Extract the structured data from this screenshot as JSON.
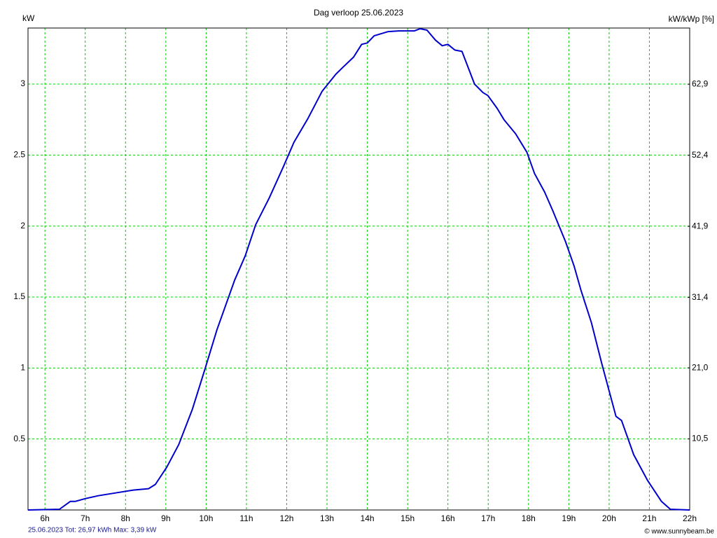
{
  "chart_data": {
    "type": "line",
    "title": "Dag  verloop 25.06.2023",
    "ylabel": "kW",
    "y2label": "kW/kWp [%]",
    "annotations": [
      "25.06.2023 Tot: 26,97 kWh Max: 3,39 kW",
      "© www.sunnybeam.be"
    ],
    "x": [
      5.58,
      6.36,
      6.63,
      6.75,
      7.0,
      7.32,
      7.75,
      8.19,
      8.57,
      8.74,
      9.02,
      9.32,
      9.66,
      9.98,
      10.27,
      10.71,
      10.97,
      11.23,
      11.57,
      11.92,
      12.18,
      12.53,
      12.88,
      13.22,
      13.4,
      13.66,
      13.86,
      14.0,
      14.17,
      14.52,
      14.78,
      15.17,
      15.31,
      15.48,
      15.69,
      15.86,
      16.0,
      16.17,
      16.35,
      16.66,
      16.87,
      16.99,
      17.22,
      17.39,
      17.68,
      17.96,
      18.15,
      18.4,
      18.6,
      18.92,
      19.13,
      19.3,
      19.56,
      19.82,
      20.17,
      20.31,
      20.61,
      20.95,
      21.3,
      21.52,
      22.0
    ],
    "series": [
      {
        "color": "#0000cc",
        "values": [
          0,
          0.005,
          0.06,
          0.06,
          0.08,
          0.1,
          0.12,
          0.14,
          0.15,
          0.18,
          0.3,
          0.46,
          0.71,
          1.0,
          1.27,
          1.62,
          1.79,
          2.01,
          2.2,
          2.42,
          2.59,
          2.76,
          2.95,
          3.07,
          3.12,
          3.19,
          3.28,
          3.29,
          3.34,
          3.37,
          3.375,
          3.375,
          3.39,
          3.38,
          3.31,
          3.27,
          3.28,
          3.24,
          3.23,
          3.0,
          2.94,
          2.92,
          2.83,
          2.75,
          2.65,
          2.52,
          2.37,
          2.24,
          2.11,
          1.89,
          1.72,
          1.55,
          1.32,
          1.03,
          0.66,
          0.63,
          0.39,
          0.21,
          0.06,
          0.005,
          0
        ]
      }
    ],
    "xlim": [
      5.58,
      22
    ],
    "xticks": [
      {
        "value": 6,
        "label": "6h"
      },
      {
        "value": 7,
        "label": "7h"
      },
      {
        "value": 8,
        "label": "8h"
      },
      {
        "value": 9,
        "label": "9h"
      },
      {
        "value": 10,
        "label": "10h"
      },
      {
        "value": 11,
        "label": "11h"
      },
      {
        "value": 12,
        "label": "12h"
      },
      {
        "value": 13,
        "label": "13h"
      },
      {
        "value": 14,
        "label": "14h"
      },
      {
        "value": 15,
        "label": "15h"
      },
      {
        "value": 16,
        "label": "16h"
      },
      {
        "value": 17,
        "label": "17h"
      },
      {
        "value": 18,
        "label": "18h"
      },
      {
        "value": 19,
        "label": "19h"
      },
      {
        "value": 20,
        "label": "20h"
      },
      {
        "value": 21,
        "label": "21h"
      },
      {
        "value": 22,
        "label": "22h"
      }
    ],
    "ylim": [
      0,
      3.395
    ],
    "yticks": [
      0.5,
      1,
      1.5,
      2,
      2.5,
      3
    ],
    "y2lim": [
      0,
      71.2
    ],
    "y2ticks": [
      {
        "value": 10.5,
        "label": "10,5"
      },
      {
        "value": 21.0,
        "label": "21,0"
      },
      {
        "value": 31.4,
        "label": "31,4"
      },
      {
        "value": 41.9,
        "label": "41,9"
      },
      {
        "value": 52.4,
        "label": "52,4"
      },
      {
        "value": 62.9,
        "label": "62,9"
      }
    ],
    "grid": true,
    "grid_color": "#00cc00"
  }
}
